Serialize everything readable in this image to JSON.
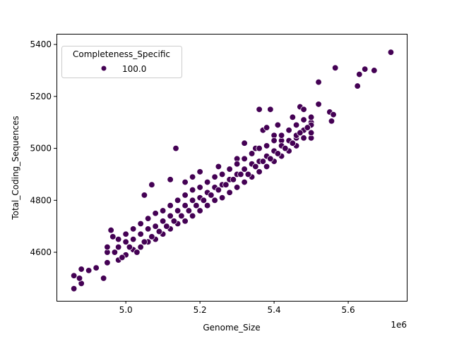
{
  "chart_data": {
    "type": "scatter",
    "xlabel": "Genome_Size",
    "ylabel": "Total_Coding_Sequences",
    "x_offset_label": "1e6",
    "xlim": [
      4.813,
      5.758
    ],
    "ylim": [
      4413,
      5441
    ],
    "xticks": [
      5.0,
      5.2,
      5.4,
      5.6
    ],
    "xtick_labels": [
      "5.0",
      "5.2",
      "5.4",
      "5.6"
    ],
    "yticks": [
      4600,
      4800,
      5000,
      5200,
      5400
    ],
    "ytick_labels": [
      "4600",
      "4800",
      "5000",
      "5200",
      "5400"
    ],
    "grid": false,
    "legend": {
      "title": "Completeness_Specific",
      "placement": "top-left",
      "entries": [
        {
          "label": "100.0",
          "color": "#440154"
        }
      ]
    },
    "marker_color": "#440154",
    "marker_edge": "#ffffff",
    "points": [
      [
        4.86,
        4510
      ],
      [
        4.86,
        4460
      ],
      [
        4.88,
        4480
      ],
      [
        4.88,
        4535
      ],
      [
        4.875,
        4500
      ],
      [
        4.9,
        4530
      ],
      [
        4.92,
        4540
      ],
      [
        4.94,
        4500
      ],
      [
        4.96,
        4685
      ],
      [
        4.965,
        4660
      ],
      [
        5.05,
        4820
      ],
      [
        5.07,
        4860
      ],
      [
        5.12,
        4880
      ],
      [
        5.135,
        5000
      ],
      [
        5.16,
        4870
      ],
      [
        5.18,
        4890
      ],
      [
        5.2,
        4910
      ],
      [
        5.25,
        4930
      ],
      [
        5.3,
        4960
      ],
      [
        5.32,
        5020
      ],
      [
        5.35,
        5000
      ],
      [
        5.36,
        5150
      ],
      [
        5.39,
        5150
      ],
      [
        5.37,
        5070
      ],
      [
        5.38,
        5080
      ],
      [
        5.41,
        5090
      ],
      [
        5.4,
        5050
      ],
      [
        5.42,
        5030
      ],
      [
        5.45,
        5120
      ],
      [
        5.46,
        5040
      ],
      [
        5.47,
        5160
      ],
      [
        5.48,
        5150
      ],
      [
        5.5,
        5100
      ],
      [
        5.5,
        5040
      ],
      [
        5.52,
        5170
      ],
      [
        5.55,
        5140
      ],
      [
        5.56,
        5130
      ],
      [
        5.555,
        5105
      ],
      [
        5.52,
        5255
      ],
      [
        5.565,
        5310
      ],
      [
        5.625,
        5240
      ],
      [
        5.63,
        5285
      ],
      [
        5.645,
        5305
      ],
      [
        5.67,
        5300
      ],
      [
        5.715,
        5370
      ],
      [
        4.95,
        4560
      ],
      [
        4.95,
        4600
      ],
      [
        4.95,
        4620
      ],
      [
        4.98,
        4570
      ],
      [
        4.98,
        4620
      ],
      [
        4.98,
        4650
      ],
      [
        5.0,
        4590
      ],
      [
        5.0,
        4640
      ],
      [
        5.0,
        4670
      ],
      [
        5.02,
        4610
      ],
      [
        5.02,
        4650
      ],
      [
        5.02,
        4690
      ],
      [
        5.04,
        4620
      ],
      [
        5.04,
        4670
      ],
      [
        5.04,
        4710
      ],
      [
        5.06,
        4640
      ],
      [
        5.06,
        4690
      ],
      [
        5.06,
        4730
      ],
      [
        5.08,
        4650
      ],
      [
        5.08,
        4700
      ],
      [
        5.08,
        4750
      ],
      [
        5.1,
        4670
      ],
      [
        5.1,
        4720
      ],
      [
        5.1,
        4760
      ],
      [
        5.12,
        4690
      ],
      [
        5.12,
        4740
      ],
      [
        5.12,
        4780
      ],
      [
        5.14,
        4710
      ],
      [
        5.14,
        4760
      ],
      [
        5.14,
        4800
      ],
      [
        5.16,
        4720
      ],
      [
        5.16,
        4780
      ],
      [
        5.16,
        4820
      ],
      [
        5.18,
        4740
      ],
      [
        5.18,
        4800
      ],
      [
        5.18,
        4840
      ],
      [
        5.2,
        4760
      ],
      [
        5.2,
        4810
      ],
      [
        5.2,
        4850
      ],
      [
        5.22,
        4780
      ],
      [
        5.22,
        4830
      ],
      [
        5.22,
        4870
      ],
      [
        5.24,
        4800
      ],
      [
        5.24,
        4850
      ],
      [
        5.24,
        4890
      ],
      [
        5.26,
        4810
      ],
      [
        5.26,
        4860
      ],
      [
        5.26,
        4900
      ],
      [
        5.28,
        4830
      ],
      [
        5.28,
        4880
      ],
      [
        5.28,
        4920
      ],
      [
        5.3,
        4850
      ],
      [
        5.3,
        4900
      ],
      [
        5.3,
        4940
      ],
      [
        5.32,
        4870
      ],
      [
        5.32,
        4920
      ],
      [
        5.32,
        4960
      ],
      [
        5.34,
        4890
      ],
      [
        5.34,
        4940
      ],
      [
        5.34,
        4980
      ],
      [
        5.36,
        4910
      ],
      [
        5.36,
        4950
      ],
      [
        5.36,
        5000
      ],
      [
        5.38,
        4930
      ],
      [
        5.38,
        4970
      ],
      [
        5.38,
        5010
      ],
      [
        5.4,
        4950
      ],
      [
        5.4,
        4990
      ],
      [
        5.4,
        5030
      ],
      [
        5.42,
        4970
      ],
      [
        5.42,
        5010
      ],
      [
        5.42,
        5050
      ],
      [
        5.44,
        4990
      ],
      [
        5.44,
        5030
      ],
      [
        5.44,
        5070
      ],
      [
        5.46,
        5010
      ],
      [
        5.46,
        5050
      ],
      [
        5.46,
        5090
      ],
      [
        5.48,
        5040
      ],
      [
        5.48,
        5070
      ],
      [
        5.48,
        5110
      ],
      [
        5.5,
        5060
      ],
      [
        5.5,
        5090
      ],
      [
        5.5,
        5120
      ],
      [
        4.97,
        4600
      ],
      [
        4.99,
        4580
      ],
      [
        5.01,
        4620
      ],
      [
        5.03,
        4600
      ],
      [
        5.05,
        4640
      ],
      [
        5.07,
        4660
      ],
      [
        5.09,
        4680
      ],
      [
        5.11,
        4700
      ],
      [
        5.13,
        4720
      ],
      [
        5.15,
        4740
      ],
      [
        5.17,
        4760
      ],
      [
        5.19,
        4780
      ],
      [
        5.21,
        4800
      ],
      [
        5.23,
        4820
      ],
      [
        5.25,
        4840
      ],
      [
        5.27,
        4860
      ],
      [
        5.29,
        4880
      ],
      [
        5.31,
        4900
      ],
      [
        5.33,
        4900
      ],
      [
        5.35,
        4930
      ],
      [
        5.37,
        4950
      ],
      [
        5.39,
        4960
      ],
      [
        5.41,
        4980
      ],
      [
        5.43,
        5000
      ],
      [
        5.45,
        5020
      ],
      [
        5.47,
        5060
      ],
      [
        5.49,
        5080
      ]
    ]
  }
}
